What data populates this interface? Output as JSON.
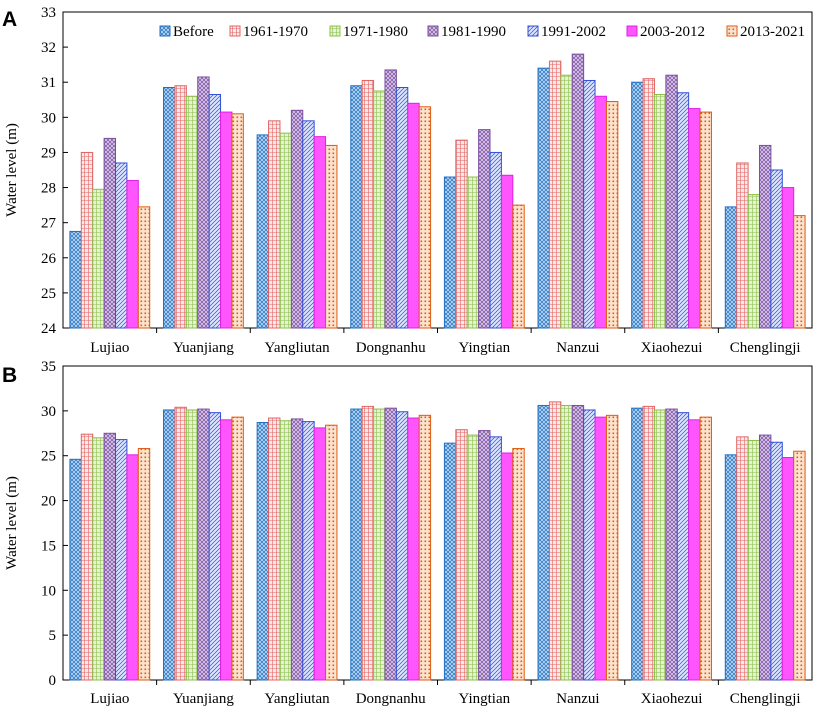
{
  "chart_data": [
    {
      "type": "bar",
      "panel_label": "A",
      "title": "",
      "xlabel": "",
      "ylabel": "Water level (m)",
      "ylim": [
        24,
        33
      ],
      "yticks": [
        24,
        25,
        26,
        27,
        28,
        29,
        30,
        31,
        32,
        33
      ],
      "legend_position": "top-right",
      "categories": [
        "Lujiao",
        "Yuanjiang",
        "Yangliutan",
        "Dongnanhu",
        "Yingtian",
        "Nanzui",
        "Xiaohezui",
        "Chenglingji"
      ],
      "series": [
        {
          "name": "Before",
          "values": [
            26.75,
            30.85,
            29.5,
            30.9,
            28.3,
            31.4,
            31.0,
            27.45
          ]
        },
        {
          "name": "1961-1970",
          "values": [
            29.0,
            30.9,
            29.9,
            31.05,
            29.35,
            31.6,
            31.1,
            28.7
          ]
        },
        {
          "name": "1971-1980",
          "values": [
            27.95,
            30.6,
            29.55,
            30.75,
            28.3,
            31.2,
            30.65,
            27.8
          ]
        },
        {
          "name": "1981-1990",
          "values": [
            29.4,
            31.15,
            30.2,
            31.35,
            29.65,
            31.8,
            31.2,
            29.2
          ]
        },
        {
          "name": "1991-2002",
          "values": [
            28.7,
            30.65,
            29.9,
            30.85,
            29.0,
            31.05,
            30.7,
            28.5
          ]
        },
        {
          "name": "2003-2012",
          "values": [
            28.2,
            30.15,
            29.45,
            30.4,
            28.35,
            30.6,
            30.25,
            28.0
          ]
        },
        {
          "name": "2013-2021",
          "values": [
            27.45,
            30.1,
            29.2,
            30.3,
            27.5,
            30.45,
            30.15,
            27.2
          ]
        }
      ]
    },
    {
      "type": "bar",
      "panel_label": "B",
      "title": "",
      "xlabel": "",
      "ylabel": "Water level (m)",
      "ylim": [
        0,
        35
      ],
      "yticks": [
        0,
        5,
        10,
        15,
        20,
        25,
        30,
        35
      ],
      "categories": [
        "Lujiao",
        "Yuanjiang",
        "Yangliutan",
        "Dongnanhu",
        "Yingtian",
        "Nanzui",
        "Xiaohezui",
        "Chenglingji"
      ],
      "series": [
        {
          "name": "Before",
          "values": [
            24.6,
            30.1,
            28.7,
            30.2,
            26.4,
            30.6,
            30.3,
            25.1
          ]
        },
        {
          "name": "1961-1970",
          "values": [
            27.4,
            30.4,
            29.2,
            30.5,
            27.9,
            31.0,
            30.5,
            27.1
          ]
        },
        {
          "name": "1971-1980",
          "values": [
            27.0,
            30.1,
            28.9,
            30.2,
            27.3,
            30.6,
            30.1,
            26.7
          ]
        },
        {
          "name": "1981-1990",
          "values": [
            27.5,
            30.2,
            29.1,
            30.3,
            27.8,
            30.6,
            30.2,
            27.3
          ]
        },
        {
          "name": "1991-2002",
          "values": [
            26.8,
            29.8,
            28.8,
            29.9,
            27.1,
            30.1,
            29.8,
            26.5
          ]
        },
        {
          "name": "2003-2012",
          "values": [
            25.1,
            29.0,
            28.1,
            29.2,
            25.3,
            29.3,
            29.0,
            24.8
          ]
        },
        {
          "name": "2013-2021",
          "values": [
            25.8,
            29.3,
            28.4,
            29.5,
            25.8,
            29.5,
            29.3,
            25.5
          ]
        }
      ]
    }
  ],
  "series_style": [
    {
      "name": "Before",
      "stroke": "#1f6fc2",
      "fill": "#bcd9f2",
      "pattern": "crosshatch"
    },
    {
      "name": "1961-1970",
      "stroke": "#e06464",
      "fill": "#fde8e8",
      "pattern": "grid"
    },
    {
      "name": "1971-1980",
      "stroke": "#8cbf4a",
      "fill": "#e6f2d4",
      "pattern": "grid"
    },
    {
      "name": "1981-1990",
      "stroke": "#7a4f9e",
      "fill": "#d9c9ea",
      "pattern": "crosshatch"
    },
    {
      "name": "1991-2002",
      "stroke": "#3050d8",
      "fill": "#dde4fb",
      "pattern": "diagonal"
    },
    {
      "name": "2003-2012",
      "stroke": "#e020e0",
      "fill": "#ff55ff",
      "pattern": "solid"
    },
    {
      "name": "2013-2021",
      "stroke": "#e05a10",
      "fill": "#fbe3cf",
      "pattern": "dots"
    }
  ]
}
